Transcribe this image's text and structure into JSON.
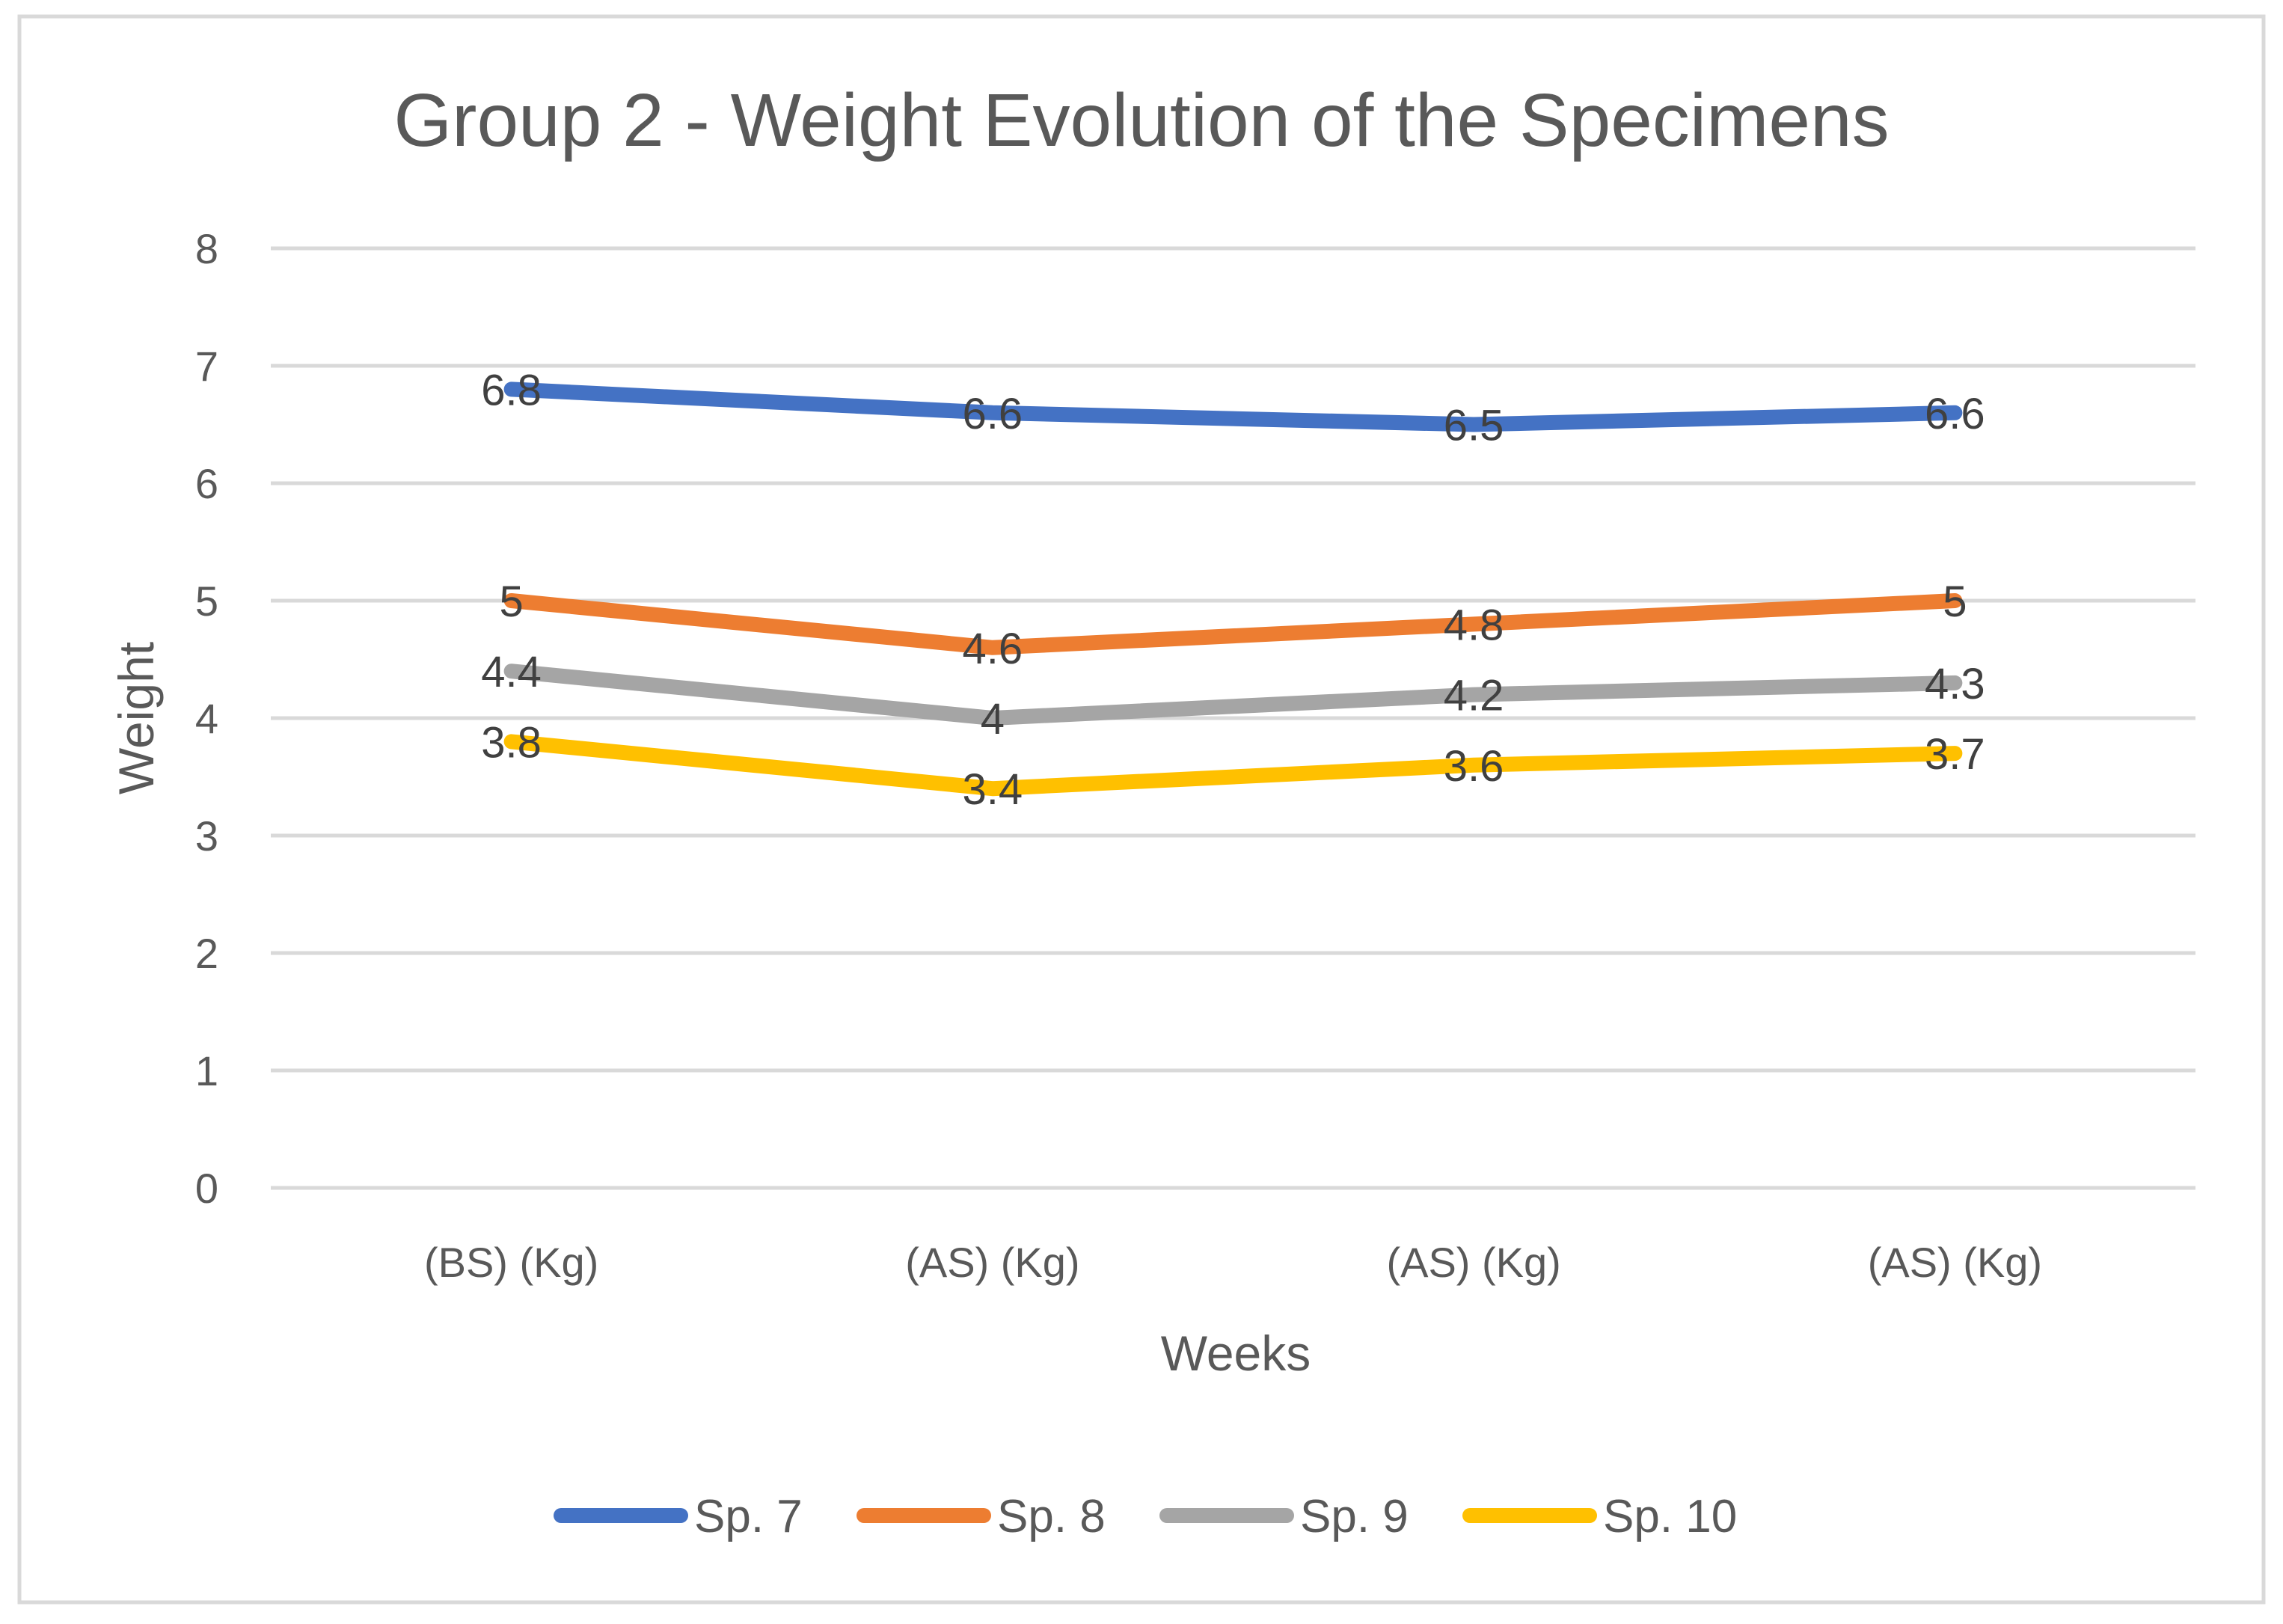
{
  "chart_data": {
    "type": "line",
    "title": "Group 2 - Weight Evolution of the Specimens",
    "xlabel": "Weeks",
    "ylabel": "Weight",
    "categories": [
      "(BS) (Kg)",
      "(AS) (Kg)",
      "(AS) (Kg)",
      "(AS) (Kg)"
    ],
    "ylim": [
      0,
      8
    ],
    "yticks": [
      "0",
      "1",
      "2",
      "3",
      "4",
      "5",
      "6",
      "7",
      "8"
    ],
    "grid": true,
    "legend": "bottom",
    "series": [
      {
        "name": "Sp. 7",
        "values": [
          6.8,
          6.6,
          6.5,
          6.6
        ],
        "labels": [
          "6.8",
          "6.6",
          "6.5",
          "6.6"
        ],
        "color": "#4472c4"
      },
      {
        "name": "Sp. 8",
        "values": [
          5,
          4.6,
          4.8,
          5
        ],
        "labels": [
          "5",
          "4.6",
          "4.8",
          "5"
        ],
        "color": "#ed7d31"
      },
      {
        "name": "Sp. 9",
        "values": [
          4.4,
          4,
          4.2,
          4.3
        ],
        "labels": [
          "4.4",
          "4",
          "4.2",
          "4.3"
        ],
        "color": "#a5a5a5"
      },
      {
        "name": "Sp. 10",
        "values": [
          3.8,
          3.4,
          3.6,
          3.7
        ],
        "labels": [
          "3.8",
          "3.4",
          "3.6",
          "3.7"
        ],
        "color": "#ffc000"
      }
    ]
  }
}
